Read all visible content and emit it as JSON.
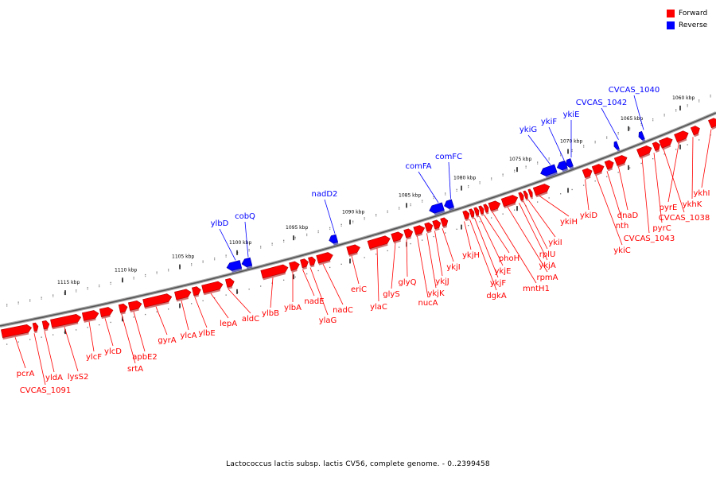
{
  "legend": {
    "forward_label": "Forward",
    "reverse_label": "Reverse",
    "forward_color": "#ff0000",
    "reverse_color": "#0000ff"
  },
  "caption": "Lactococcus lactis subsp. lactis CV56, complete genome. - 0..2399458",
  "ticks": [
    "1060 kbp",
    "1065 kbp",
    "1070 kbp",
    "1075 kbp",
    "1080 kbp",
    "1085 kbp",
    "1090 kbp",
    "1095 kbp",
    "1100 kbp",
    "1105 kbp",
    "1110 kbp",
    "1115 kbp"
  ],
  "reverse_genes": [
    "CVCAS_1040",
    "CVCAS_1042",
    "ykiE",
    "ykiF",
    "ykiG",
    "comFC",
    "comFA",
    "nadD2",
    "cobQ",
    "ylbD"
  ],
  "forward_genes": [
    "ykhI",
    "ykhK",
    "pyrE",
    "CVCAS_1038",
    "pyrC",
    "CVCAS_1043",
    "dnaD",
    "nth",
    "ykiC",
    "ykiD",
    "ykiH",
    "ykiI",
    "rplU",
    "ykjA",
    "rpmA",
    "mntH1",
    "phoH",
    "ykjE",
    "ykjF",
    "dgkA",
    "ykjH",
    "ykjI",
    "ykjJ",
    "ykjK",
    "nucA",
    "glyQ",
    "glyS",
    "ylaC",
    "eriC",
    "nadC",
    "ylaG",
    "nadE",
    "ylbA",
    "ylbB",
    "aldC",
    "lepA",
    "ylbE",
    "ylcA",
    "gyrA",
    "apbE2",
    "srtA",
    "ylcD",
    "ylcF",
    "lysS2",
    "yldA",
    "CVCAS_1091",
    "pcrA"
  ]
}
